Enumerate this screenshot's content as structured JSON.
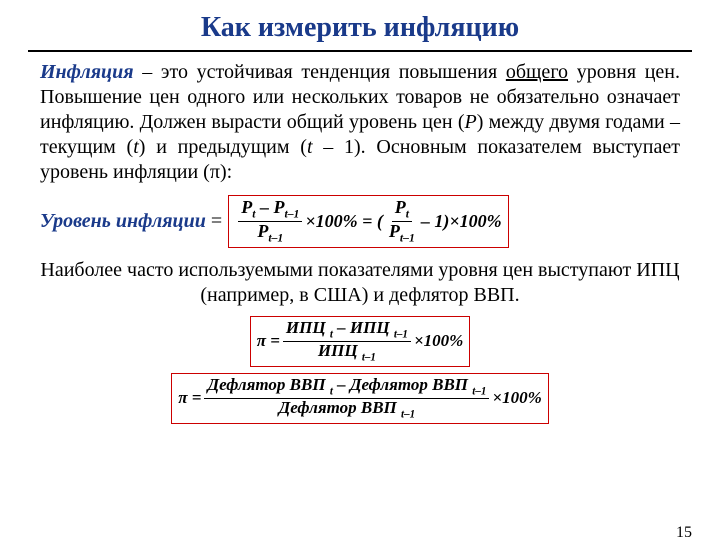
{
  "title": "Как измерить инфляцию",
  "definition": {
    "term": "Инфляция",
    "text_before": " – это устойчивая тенденция повышения ",
    "underlined": "общего",
    "text_after1": " уровня цен. Повышение цен одного или нескольких товаров не обязательно означает инфляцию. Должен вырасти общий уровень цен (",
    "P": "P",
    "text_after2": ") между двумя годами – текущим (",
    "t": "t",
    "text_after3": ") и предыдущим (",
    "t1": "t",
    "minus1": " – 1",
    "text_after4": "). Основным показателем выступает уровень инфляции (π):"
  },
  "inflation_level": {
    "label_term": "Уровень инфляции",
    "equals": " = ",
    "formula": {
      "num1_a": "P",
      "num1_a_sub": "t",
      "num1_minus": " – ",
      "num1_b": "P",
      "num1_b_sub": "t–1",
      "den1": "P",
      "den1_sub": "t–1",
      "times100_1": "×100% = (",
      "num2": "P",
      "num2_sub": "t",
      "den2": "P",
      "den2_sub": "t–1",
      "minus1_close": " – 1)",
      "times100_2": "×100%"
    }
  },
  "para2": "Наиболее часто используемыми показателями уровня цен выступают ИПЦ (например, в США) и дефлятор ВВП.",
  "ipc_formula": {
    "pi_eq": "π = ",
    "num_a": "ИПЦ ",
    "num_a_sub": "t",
    "minus": " – ",
    "num_b": "ИПЦ ",
    "num_b_sub": "t–1",
    "den": "ИПЦ ",
    "den_sub": "t–1",
    "times100": "×100%"
  },
  "deflator_formula": {
    "pi_eq": "π = ",
    "num_a": "Дефлятор ВВП ",
    "num_a_sub": "t",
    "minus": " – ",
    "num_b": "Дефлятор ВВП ",
    "num_b_sub": "t–1",
    "den": "Дефлятор ВВП ",
    "den_sub": "t–1",
    "times100": "×100%"
  },
  "page_number": "15",
  "colors": {
    "title": "#1a3a8a",
    "term": "#1a3a8a",
    "formula_border": "#cc0000",
    "text": "#000000",
    "background": "#ffffff"
  },
  "fonts": {
    "family": "Times New Roman",
    "title_size_pt": 21,
    "body_size_pt": 15,
    "formula_size_pt": 13
  }
}
